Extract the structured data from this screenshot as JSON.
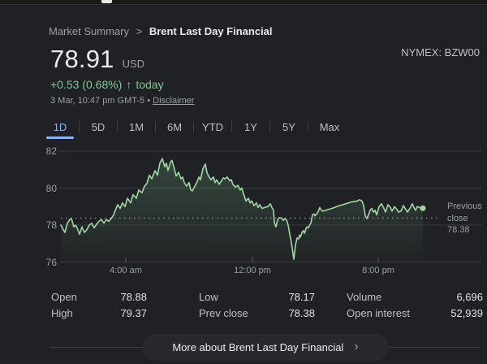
{
  "breadcrumb": {
    "parent": "Market Summary",
    "separator": ">",
    "current": "Brent Last Day Financial"
  },
  "exchange": {
    "label": "NYMEX: BZW00"
  },
  "quote": {
    "price": "78.91",
    "currency": "USD",
    "change": "+0.53 (0.68%)",
    "arrow": "↑",
    "change_suffix": "today",
    "timestamp": "3 Mar, 10:47 pm GMT-5 •",
    "disclaimer": "Disclaimer",
    "positive_color": "#81c995"
  },
  "range_tabs": {
    "items": [
      "1D",
      "5D",
      "1M",
      "6M",
      "YTD",
      "1Y",
      "5Y",
      "Max"
    ],
    "active_index": 0,
    "active_color": "#8ab4f8"
  },
  "chart_data": {
    "type": "line",
    "title": "Brent Last Day Financial intraday price",
    "y_ticks": [
      "82",
      "80",
      "78",
      "76"
    ],
    "y_range": [
      76,
      82
    ],
    "x_ticks": [
      "4:00 am",
      "12:00 pm",
      "8:00 pm"
    ],
    "previous_close_label": "Previous close",
    "previous_close_value": "78.38",
    "previous_close": 78.38,
    "line_color": "#a0d8a4",
    "grid_color": "#3a3d40",
    "series_name": "price",
    "series": [
      [
        75,
        78.0
      ],
      [
        78,
        77.75
      ],
      [
        80,
        77.6
      ],
      [
        83,
        78.1
      ],
      [
        86,
        78.3
      ],
      [
        88,
        78.35
      ],
      [
        91,
        77.9
      ],
      [
        93,
        78.0
      ],
      [
        95,
        77.85
      ],
      [
        98,
        77.5
      ],
      [
        101,
        77.9
      ],
      [
        104,
        77.6
      ],
      [
        107,
        77.75
      ],
      [
        110,
        78.0
      ],
      [
        113,
        78.1
      ],
      [
        116,
        77.85
      ],
      [
        119,
        78.05
      ],
      [
        122,
        78.2
      ],
      [
        125,
        78.3
      ],
      [
        128,
        78.1
      ],
      [
        131,
        78.3
      ],
      [
        134,
        78.2
      ],
      [
        137,
        78.35
      ],
      [
        140,
        78.55
      ],
      [
        143,
        78.9
      ],
      [
        145,
        79.1
      ],
      [
        148,
        78.9
      ],
      [
        151,
        79.2
      ],
      [
        154,
        79.0
      ],
      [
        157,
        79.45
      ],
      [
        161,
        79.2
      ],
      [
        164,
        79.65
      ],
      [
        168,
        79.45
      ],
      [
        171,
        79.9
      ],
      [
        175,
        79.75
      ],
      [
        178,
        80.1
      ],
      [
        181,
        80.25
      ],
      [
        184,
        80.7
      ],
      [
        187,
        80.5
      ],
      [
        191,
        80.95
      ],
      [
        194,
        80.7
      ],
      [
        197,
        81.35
      ],
      [
        200,
        81.6
      ],
      [
        203,
        81.15
      ],
      [
        205,
        81.35
      ],
      [
        207,
        80.95
      ],
      [
        210,
        81.4
      ],
      [
        212,
        81.5
      ],
      [
        215,
        81.0
      ],
      [
        217,
        80.65
      ],
      [
        220,
        80.85
      ],
      [
        223,
        80.5
      ],
      [
        225,
        80.6
      ],
      [
        227,
        80.3
      ],
      [
        230,
        80.1
      ],
      [
        233,
        80.3
      ],
      [
        235,
        79.9
      ],
      [
        237,
        79.85
      ],
      [
        240,
        80.1
      ],
      [
        243,
        80.35
      ],
      [
        245,
        80.6
      ],
      [
        247,
        80.45
      ],
      [
        250,
        81.05
      ],
      [
        253,
        81.3
      ],
      [
        255,
        80.85
      ],
      [
        257,
        80.65
      ],
      [
        260,
        80.45
      ],
      [
        263,
        80.6
      ],
      [
        265,
        80.3
      ],
      [
        267,
        80.45
      ],
      [
        270,
        80.2
      ],
      [
        273,
        80.4
      ],
      [
        275,
        80.55
      ],
      [
        277,
        80.5
      ],
      [
        280,
        80.6
      ],
      [
        283,
        80.4
      ],
      [
        285,
        80.45
      ],
      [
        287,
        80.2
      ],
      [
        290,
        80.05
      ],
      [
        293,
        80.15
      ],
      [
        296,
        79.9
      ],
      [
        298,
        80.0
      ],
      [
        300,
        79.7
      ],
      [
        303,
        79.3
      ],
      [
        306,
        79.45
      ],
      [
        308,
        79.2
      ],
      [
        310,
        79.3
      ],
      [
        313,
        79.05
      ],
      [
        316,
        79.2
      ],
      [
        318,
        78.95
      ],
      [
        320,
        79.1
      ],
      [
        323,
        78.9
      ],
      [
        326,
        78.95
      ],
      [
        330,
        79.0
      ],
      [
        333,
        79.15
      ],
      [
        335,
        78.95
      ],
      [
        337,
        78.8
      ],
      [
        338,
        78.15
      ],
      [
        340,
        77.9
      ],
      [
        342,
        78.28
      ],
      [
        344,
        78.4
      ],
      [
        347,
        78.38
      ],
      [
        349,
        78.25
      ],
      [
        351,
        78.35
      ],
      [
        353,
        78.28
      ],
      [
        355,
        78.0
      ],
      [
        357,
        77.5
      ],
      [
        359,
        77.05
      ],
      [
        361,
        76.45
      ],
      [
        362,
        76.15
      ],
      [
        364,
        76.9
      ],
      [
        365,
        77.1
      ],
      [
        366,
        77.3
      ],
      [
        368,
        77.25
      ],
      [
        369,
        77.45
      ],
      [
        370,
        77.35
      ],
      [
        372,
        77.6
      ],
      [
        374,
        77.7
      ],
      [
        375,
        77.55
      ],
      [
        377,
        77.8
      ],
      [
        378,
        77.9
      ],
      [
        380,
        77.85
      ],
      [
        382,
        78.05
      ],
      [
        383,
        78.1
      ],
      [
        385,
        78.55
      ],
      [
        387,
        78.6
      ],
      [
        388,
        78.5
      ],
      [
        390,
        78.6
      ],
      [
        392,
        78.73
      ],
      [
        394,
        78.95
      ],
      [
        396,
        78.8
      ],
      [
        398,
        78.75
      ],
      [
        403,
        78.82
      ],
      [
        410,
        78.92
      ],
      [
        418,
        79.05
      ],
      [
        426,
        79.15
      ],
      [
        433,
        79.25
      ],
      [
        440,
        79.3
      ],
      [
        443,
        79.37
      ],
      [
        446,
        79.3
      ],
      [
        448,
        79.05
      ],
      [
        450,
        78.5
      ],
      [
        452,
        78.35
      ],
      [
        454,
        78.55
      ],
      [
        456,
        78.8
      ],
      [
        458,
        78.9
      ],
      [
        460,
        78.7
      ],
      [
        462,
        78.8
      ],
      [
        464,
        78.55
      ],
      [
        467,
        79.0
      ],
      [
        470,
        79.15
      ],
      [
        473,
        78.9
      ],
      [
        475,
        78.7
      ],
      [
        478,
        79.1
      ],
      [
        481,
        78.95
      ],
      [
        483,
        78.75
      ],
      [
        486,
        79.0
      ],
      [
        489,
        78.85
      ],
      [
        491,
        78.7
      ],
      [
        494,
        78.75
      ],
      [
        497,
        79.05
      ],
      [
        500,
        78.85
      ],
      [
        502,
        78.7
      ],
      [
        505,
        78.9
      ],
      [
        508,
        79.15
      ],
      [
        510,
        78.95
      ],
      [
        512,
        78.8
      ],
      [
        514,
        79.0
      ],
      [
        517,
        78.95
      ],
      [
        519,
        78.88
      ],
      [
        521,
        78.91
      ]
    ]
  },
  "stats": {
    "columns": [
      [
        {
          "label": "Open",
          "value": "78.88"
        },
        {
          "label": "High",
          "value": "79.37"
        }
      ],
      [
        {
          "label": "Low",
          "value": "78.17"
        },
        {
          "label": "Prev close",
          "value": "78.38"
        }
      ],
      [
        {
          "label": "Volume",
          "value": "6,696"
        },
        {
          "label": "Open interest",
          "value": "52,939"
        }
      ]
    ]
  },
  "footer": {
    "more_label": "More about Brent Last Day Financial",
    "chevron": "›"
  }
}
